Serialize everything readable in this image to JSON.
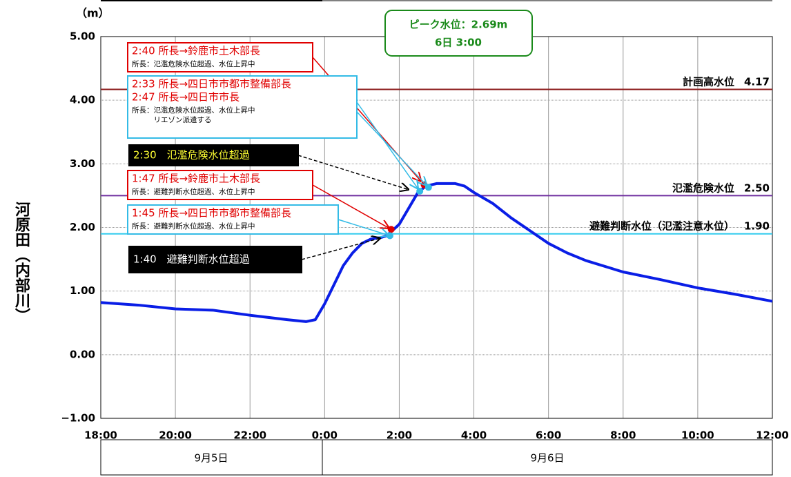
{
  "chart_data": {
    "type": "line",
    "y_label": "河原田（内部川）",
    "y_unit": "（m）",
    "xlim": [
      0,
      18
    ],
    "xticks": [
      {
        "value": 0,
        "label": "18:00"
      },
      {
        "value": 2,
        "label": "20:00"
      },
      {
        "value": 4,
        "label": "22:00"
      },
      {
        "value": 6,
        "label": "0:00"
      },
      {
        "value": 8,
        "label": "2:00"
      },
      {
        "value": 10,
        "label": "4:00"
      },
      {
        "value": 12,
        "label": "6:00"
      },
      {
        "value": 14,
        "label": "8:00"
      },
      {
        "value": 16,
        "label": "10:00"
      },
      {
        "value": 18,
        "label": "12:00"
      }
    ],
    "ylim": [
      -1,
      5
    ],
    "yticks": [
      {
        "value": -1,
        "label": "−1.00"
      },
      {
        "value": 0,
        "label": "0.00"
      },
      {
        "value": 1,
        "label": "1.00"
      },
      {
        "value": 2,
        "label": "2.00"
      },
      {
        "value": 3,
        "label": "3.00"
      },
      {
        "value": 4,
        "label": "4.00"
      },
      {
        "value": 5,
        "label": "5.00"
      }
    ],
    "grid": true,
    "dates": [
      "9月5日",
      "9月6日"
    ],
    "x": [
      0,
      1,
      2,
      3,
      4,
      5,
      5.5,
      5.75,
      6,
      6.25,
      6.5,
      6.75,
      7,
      7.25,
      7.5,
      7.667,
      8,
      8.25,
      8.5,
      8.667,
      8.783,
      9,
      9.5,
      9.75,
      10,
      10.5,
      11,
      11.5,
      12,
      12.5,
      13,
      14,
      15,
      16,
      17,
      18
    ],
    "series": [
      {
        "color": "#0a1ee6",
        "values": [
          0.82,
          0.78,
          0.72,
          0.7,
          0.62,
          0.55,
          0.52,
          0.55,
          0.8,
          1.1,
          1.4,
          1.6,
          1.75,
          1.82,
          1.84,
          1.87,
          2.05,
          2.3,
          2.55,
          2.63,
          2.66,
          2.69,
          2.69,
          2.65,
          2.55,
          2.38,
          2.15,
          1.95,
          1.75,
          1.6,
          1.48,
          1.3,
          1.18,
          1.05,
          0.95,
          0.84
        ]
      }
    ],
    "reference_lines": [
      {
        "name": "計画高水位",
        "value": 4.17,
        "color": "#8b1a1a"
      },
      {
        "name": "氾濫危険水位",
        "value": 2.5,
        "value_label": "2.50",
        "color": "#7030a0"
      },
      {
        "name": "避難判断水位（氾濫注意水位）",
        "value": 1.9,
        "value_label": "1.90",
        "color": "#33ccee"
      }
    ],
    "peak": {
      "lines": [
        "ピーク水位：2.69m",
        "6日 3:00"
      ],
      "color": "#1a8a1a"
    },
    "annotations": [
      {
        "lines": [
          {
            "text": "2:40 所長→鈴鹿市土木部長",
            "color": "#e00000"
          },
          {
            "text": "所長：氾濫危険水位超過、水位上昇中",
            "color": "#000000"
          }
        ],
        "border": "#e00000",
        "background": "#ffffff",
        "x": [
          8.667
        ],
        "y": [
          2.67
        ],
        "point_color": "#e00000"
      },
      {
        "lines": [
          {
            "text": "2:33 所長→四日市市都市整備部長",
            "color": "#e00000"
          },
          {
            "text": "2:47 所長→四日市市長",
            "color": "#e00000"
          },
          {
            "text": "所長：氾濫危険水位超過、水位上昇中",
            "color": "#000000"
          },
          {
            "text": "　　　リエゾン派遣する",
            "color": "#000000"
          }
        ],
        "border": "#33bbe6",
        "background": "#ffffff",
        "x": [
          8.55,
          8.783
        ],
        "y": [
          2.57,
          2.63
        ],
        "point_color": "#33bbe6"
      },
      {
        "lines": [
          {
            "text": "2:30　氾濫危険水位超過",
            "color": "#ffff33"
          }
        ],
        "border": "#000000",
        "background": "#000000",
        "x": [
          8.5
        ],
        "y": [
          2.55
        ],
        "dashed": true
      },
      {
        "lines": [
          {
            "text": "1:47 所長→鈴鹿市土木部長",
            "color": "#e00000"
          },
          {
            "text": "所長：避難判断水位超過、水位上昇中",
            "color": "#000000"
          }
        ],
        "border": "#e00000",
        "background": "#ffffff",
        "x": [
          7.783
        ],
        "y": [
          1.97
        ],
        "point_color": "#e00000"
      },
      {
        "lines": [
          {
            "text": "1:45 所長→四日市市都市整備部長",
            "color": "#e00000"
          },
          {
            "text": "所長：避難判断水位超過、水位上昇中",
            "color": "#000000"
          }
        ],
        "border": "#33bbe6",
        "background": "#ffffff",
        "x": [
          7.75
        ],
        "y": [
          1.87
        ],
        "point_color": "#33bbe6"
      },
      {
        "lines": [
          {
            "text": "1:40　避難判断水位超過",
            "color": "#ffffff"
          }
        ],
        "border": "#000000",
        "background": "#000000",
        "x": [
          7.667
        ],
        "y": [
          1.86
        ],
        "dashed": true
      }
    ]
  }
}
